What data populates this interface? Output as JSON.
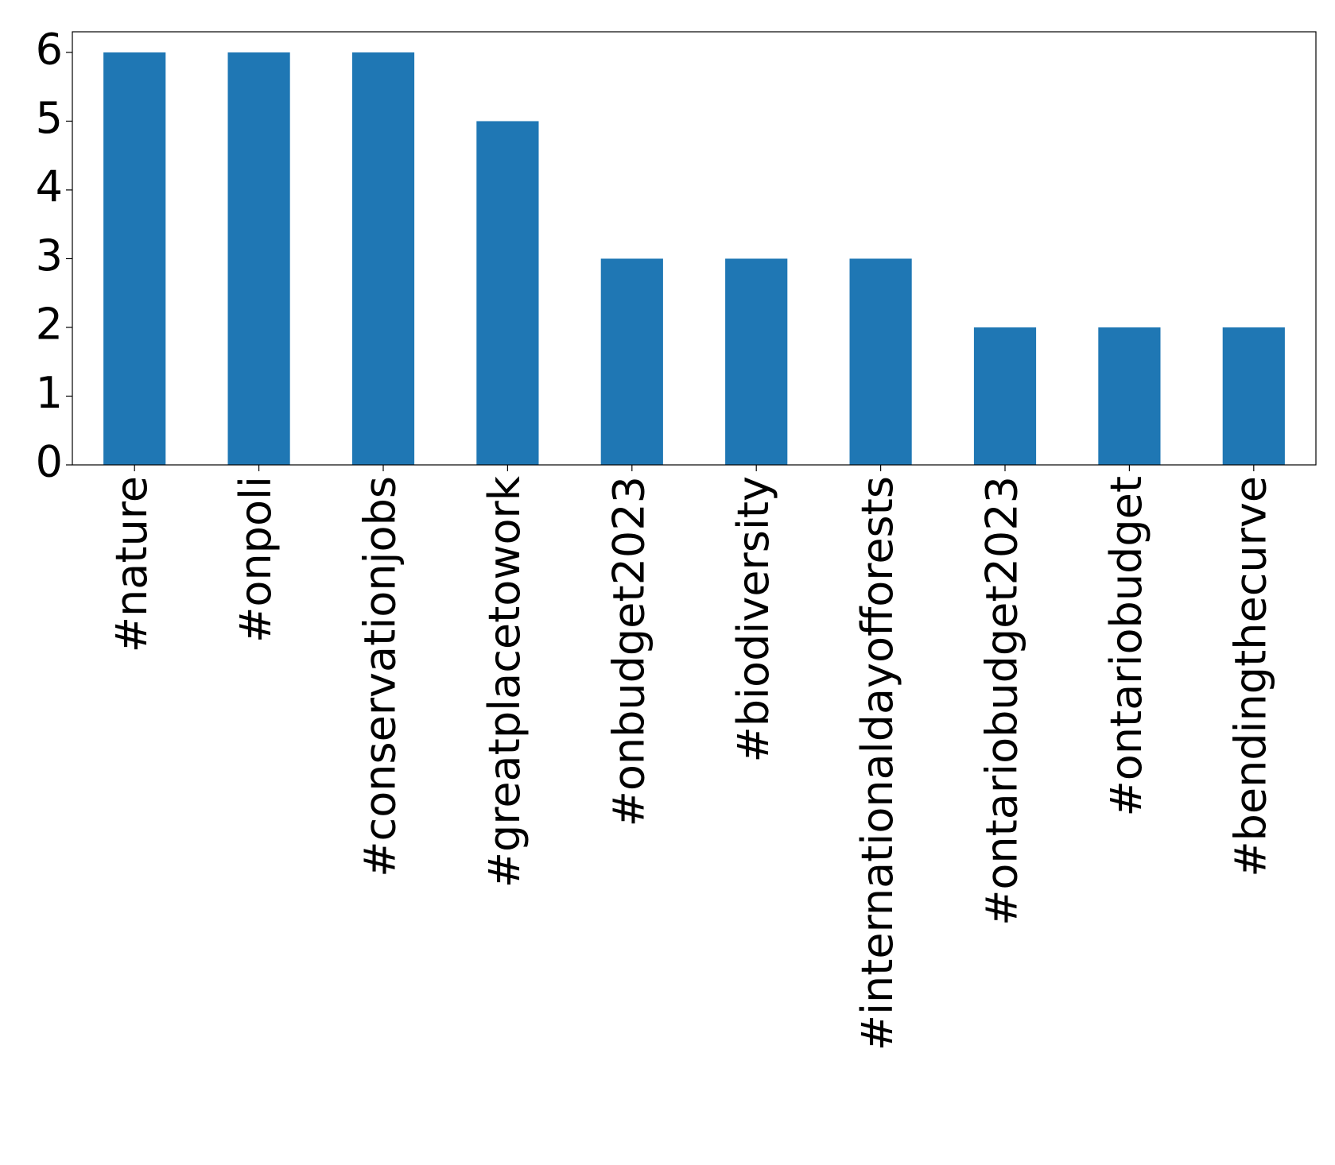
{
  "chart_data": {
    "type": "bar",
    "categories": [
      "#nature",
      "#onpoli",
      "#conservationjobs",
      "#greatplacetowork",
      "#onbudget2023",
      "#biodiversity",
      "#internationaldayofforests",
      "#ontariobudget2023",
      "#ontariobudget",
      "#bendingthecurve"
    ],
    "values": [
      6,
      6,
      6,
      5,
      3,
      3,
      3,
      2,
      2,
      2
    ],
    "color": "#1f77b4",
    "ylim": [
      0,
      6.3
    ],
    "yticks": [
      0,
      1,
      2,
      3,
      4,
      5,
      6
    ],
    "grid": false
  }
}
